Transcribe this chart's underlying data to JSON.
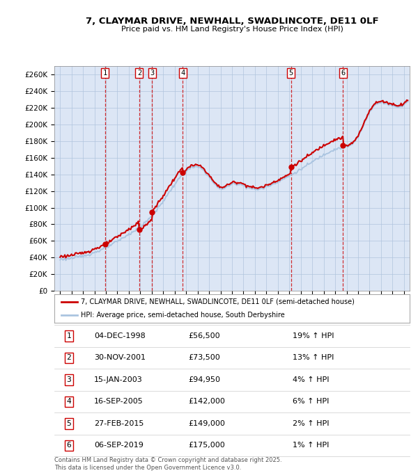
{
  "title": "7, CLAYMAR DRIVE, NEWHALL, SWADLINCOTE, DE11 0LF",
  "subtitle": "Price paid vs. HM Land Registry's House Price Index (HPI)",
  "property_label": "7, CLAYMAR DRIVE, NEWHALL, SWADLINCOTE, DE11 0LF (semi-detached house)",
  "hpi_label": "HPI: Average price, semi-detached house, South Derbyshire",
  "property_color": "#cc0000",
  "hpi_color": "#aac4e0",
  "transactions": [
    {
      "num": 1,
      "label": "04-DEC-1998",
      "price": 56500,
      "hpi_pct": "19% ↑ HPI",
      "x": 1998.92
    },
    {
      "num": 2,
      "label": "30-NOV-2001",
      "price": 73500,
      "hpi_pct": "13% ↑ HPI",
      "x": 2001.91
    },
    {
      "num": 3,
      "label": "15-JAN-2003",
      "price": 94950,
      "hpi_pct": "4% ↑ HPI",
      "x": 2003.04
    },
    {
      "num": 4,
      "label": "16-SEP-2005",
      "price": 142000,
      "hpi_pct": "6% ↑ HPI",
      "x": 2005.71
    },
    {
      "num": 5,
      "label": "27-FEB-2015",
      "price": 149000,
      "hpi_pct": "2% ↑ HPI",
      "x": 2015.16
    },
    {
      "num": 6,
      "label": "06-SEP-2019",
      "price": 175000,
      "hpi_pct": "1% ↑ HPI",
      "x": 2019.68
    }
  ],
  "copyright": "Contains HM Land Registry data © Crown copyright and database right 2025.\nThis data is licensed under the Open Government Licence v3.0.",
  "ylim": [
    0,
    270000
  ],
  "xlim": [
    1994.5,
    2025.5
  ],
  "yticks": [
    0,
    20000,
    40000,
    60000,
    80000,
    100000,
    120000,
    140000,
    160000,
    180000,
    200000,
    220000,
    240000,
    260000
  ],
  "background_color": "#dce6f5",
  "plot_bg": "#ffffff",
  "grid_color": "#b0c4de"
}
